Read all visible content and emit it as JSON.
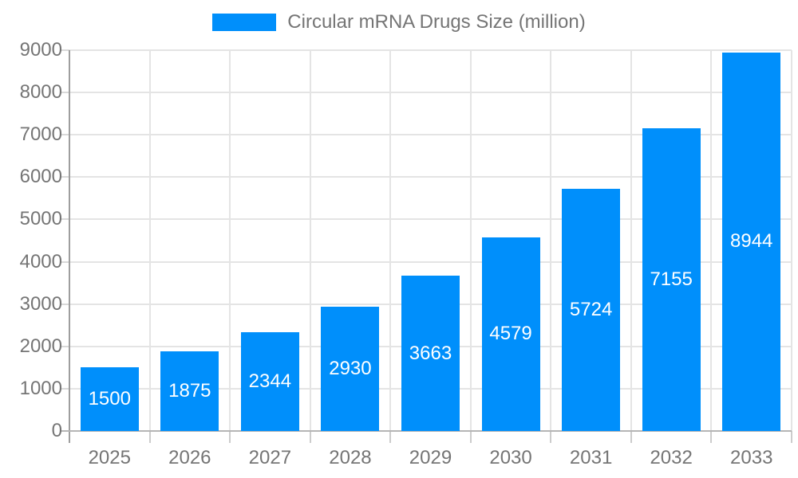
{
  "legend": {
    "label": "Circular mRNA Drugs Size (million)",
    "color": "#008FFB"
  },
  "chart_data": {
    "type": "bar",
    "title": "",
    "xlabel": "",
    "ylabel": "",
    "categories": [
      "2025",
      "2026",
      "2027",
      "2028",
      "2029",
      "2030",
      "2031",
      "2032",
      "2033"
    ],
    "series": [
      {
        "name": "Circular mRNA Drugs Size (million)",
        "values": [
          1500,
          1875,
          2344,
          2930,
          3663,
          4579,
          5724,
          7155,
          8944
        ]
      }
    ],
    "ylim": [
      0,
      9000
    ],
    "ytick_step": 1000,
    "ytick_labels": [
      "0",
      "1000",
      "2000",
      "3000",
      "4000",
      "5000",
      "6000",
      "7000",
      "8000",
      "9000"
    ],
    "grid": true,
    "legend_position": "top",
    "bar_color": "#008FFB",
    "value_label_color": "#ffffff",
    "axis_label_color": "#757575"
  }
}
